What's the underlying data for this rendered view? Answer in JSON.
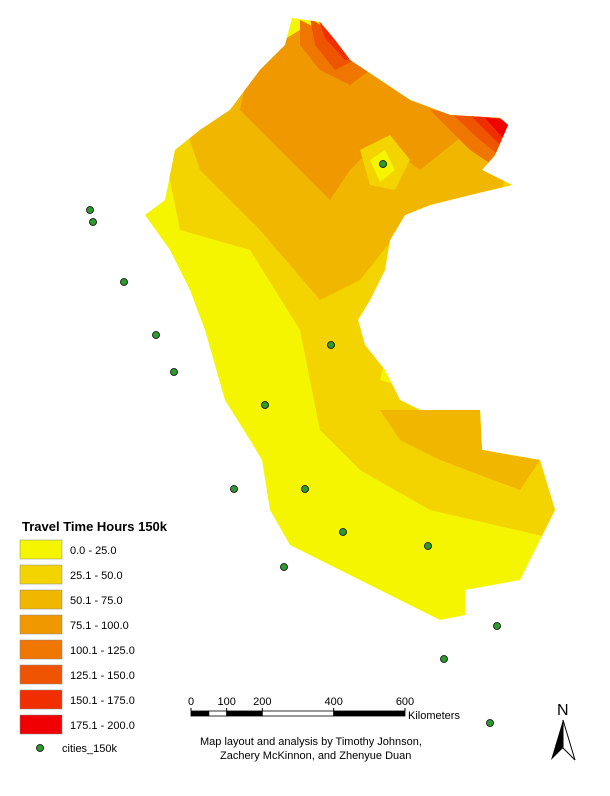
{
  "legend": {
    "title": "Travel Time Hours 150k",
    "classes": [
      {
        "label": "0.0 - 25.0",
        "color": "#f5f500"
      },
      {
        "label": "25.1 - 50.0",
        "color": "#f3d400"
      },
      {
        "label": "50.1 - 75.0",
        "color": "#f1b600"
      },
      {
        "label": "75.1 - 100.0",
        "color": "#f09800"
      },
      {
        "label": "100.1 - 125.0",
        "color": "#ef7600"
      },
      {
        "label": "125.1 - 150.0",
        "color": "#ef5400"
      },
      {
        "label": "150.1 - 175.0",
        "color": "#f02e00"
      },
      {
        "label": "175.1 - 200.0",
        "color": "#f00000"
      }
    ],
    "points_label": "cities_150k",
    "points_color": "#2e9a2e"
  },
  "scale_bar": {
    "ticks": [
      0,
      100,
      200,
      400,
      600
    ],
    "unit": "Kilometers"
  },
  "north_arrow": "N",
  "credit": [
    "Map layout and analysis by Timothy Johnson,",
    "Zachery McKinnon, and Zhenyue Duan"
  ]
}
